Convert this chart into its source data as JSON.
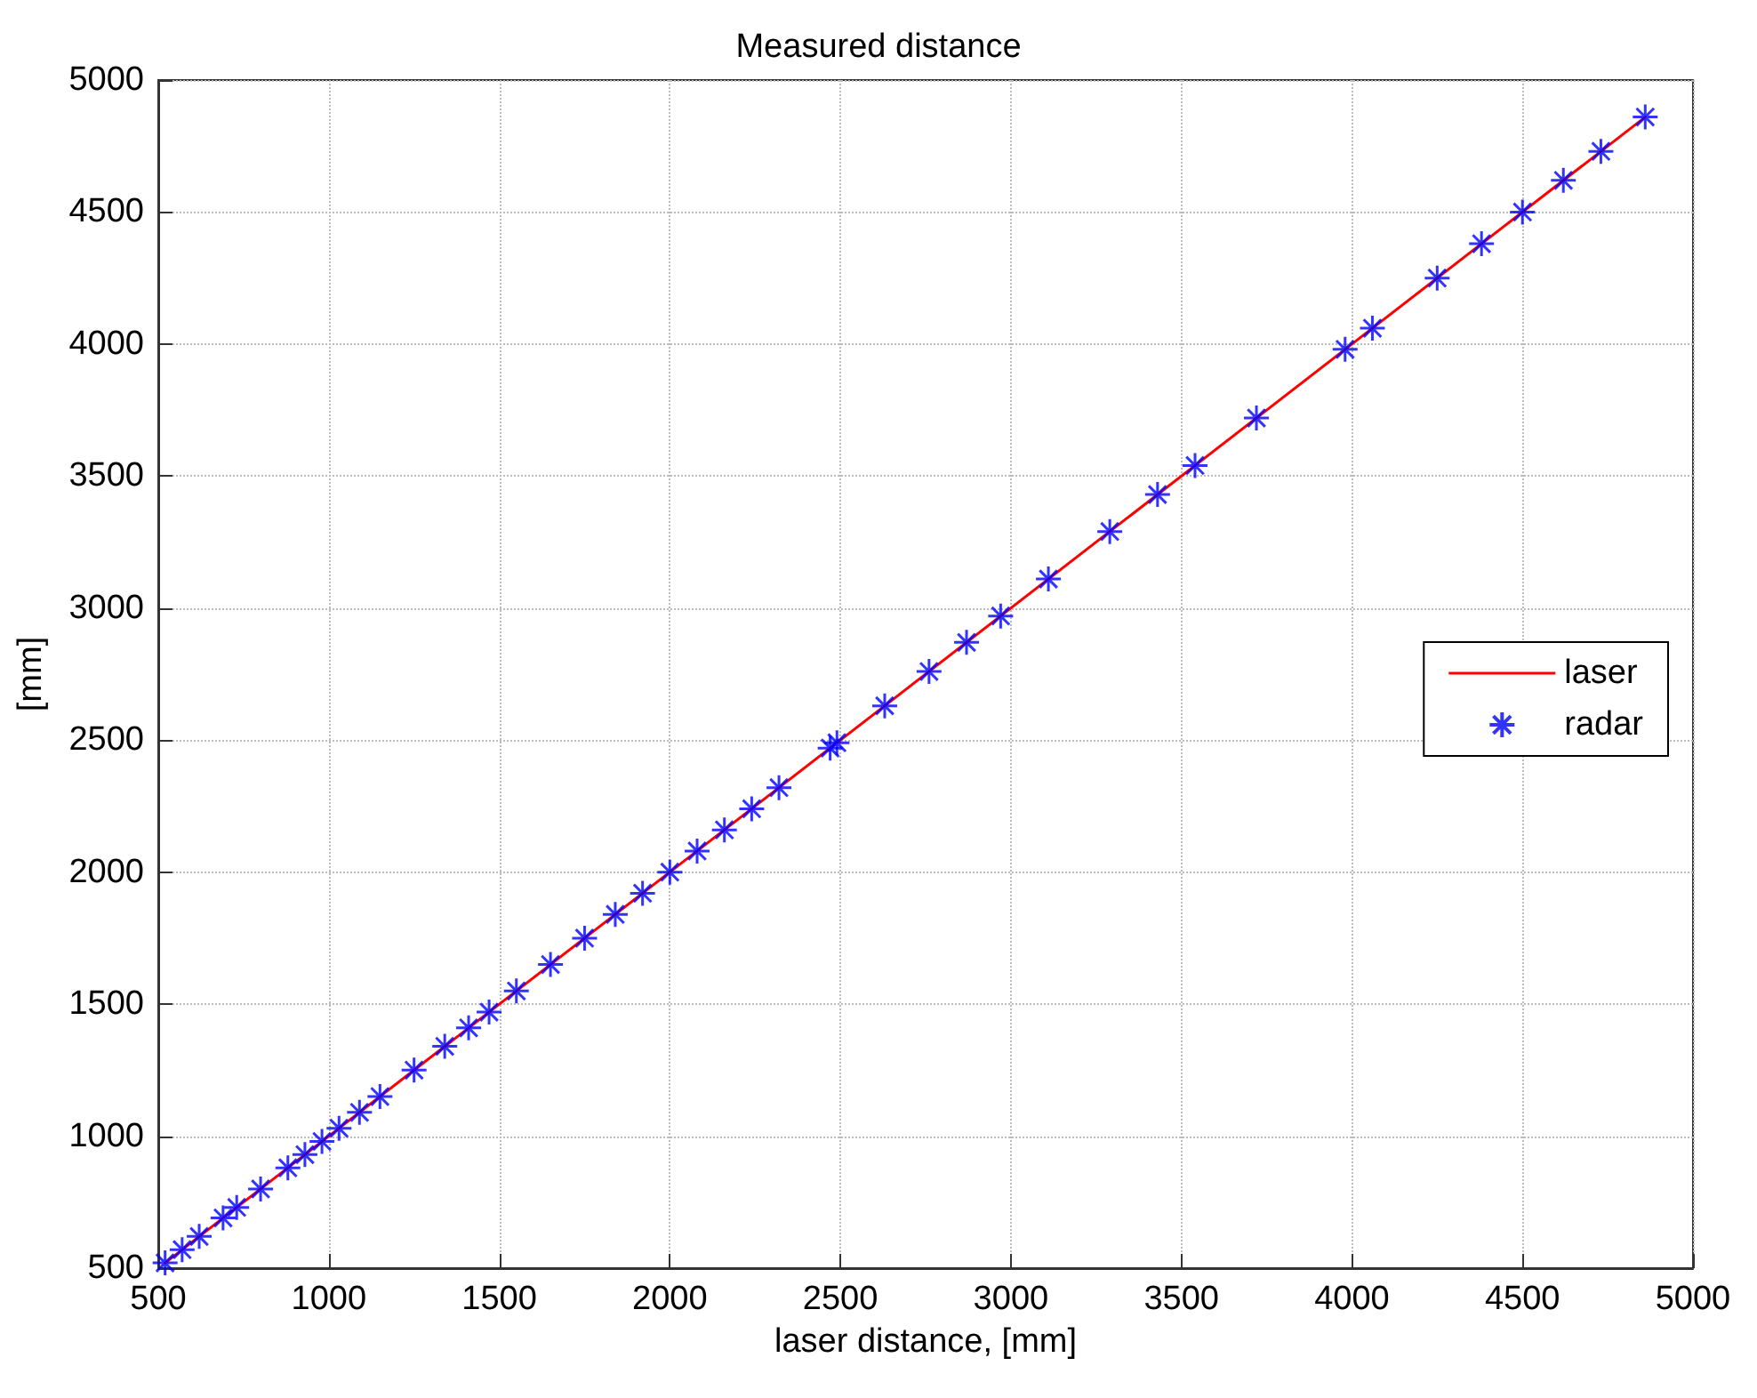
{
  "chart_data": {
    "type": "line",
    "title": "Measured distance",
    "xlabel": "laser distance, [mm]",
    "ylabel": "[mm]",
    "xlim": [
      500,
      5000
    ],
    "ylim": [
      500,
      5000
    ],
    "xticks": [
      500,
      1000,
      1500,
      2000,
      2500,
      3000,
      3500,
      4000,
      4500,
      5000
    ],
    "yticks": [
      500,
      1000,
      1500,
      2000,
      2500,
      3000,
      3500,
      4000,
      4500,
      5000
    ],
    "grid": true,
    "legend": "right",
    "series": [
      {
        "name": "laser",
        "type": "line",
        "color": "#ff0000",
        "marker": "none",
        "line_style": "solid",
        "x": [
          520,
          4860
        ],
        "values": [
          520,
          4860
        ]
      },
      {
        "name": "radar",
        "type": "scatter",
        "color": "#0000ff",
        "marker": "cross",
        "x": [
          520,
          570,
          620,
          690,
          730,
          800,
          880,
          930,
          980,
          1030,
          1090,
          1150,
          1250,
          1340,
          1410,
          1470,
          1550,
          1650,
          1750,
          1840,
          1920,
          2000,
          2080,
          2160,
          2240,
          2320,
          2470,
          2490,
          2630,
          2760,
          2870,
          2970,
          3110,
          3290,
          3430,
          3540,
          3720,
          3980,
          4060,
          4250,
          4380,
          4500,
          4620,
          4730,
          4860
        ],
        "values": [
          520,
          570,
          620,
          690,
          730,
          800,
          880,
          930,
          980,
          1030,
          1090,
          1150,
          1250,
          1340,
          1410,
          1470,
          1550,
          1650,
          1750,
          1840,
          1920,
          2000,
          2080,
          2160,
          2240,
          2320,
          2470,
          2490,
          2630,
          2760,
          2870,
          2970,
          3110,
          3290,
          3430,
          3540,
          3720,
          3980,
          4060,
          4250,
          4380,
          4500,
          4620,
          4730,
          4860
        ]
      }
    ]
  }
}
